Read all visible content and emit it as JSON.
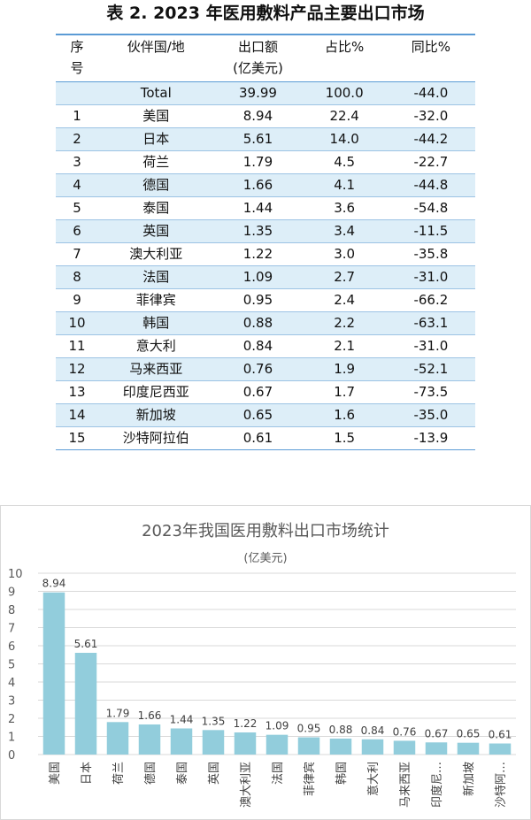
{
  "table": {
    "title": "表 2. 2023 年医用敷料产品主要出口市场",
    "headers": {
      "idx": [
        "序",
        "号"
      ],
      "partner": "伙伴国/地",
      "amount": [
        "出口额",
        "(亿美元)"
      ],
      "share": "占比%",
      "yoy": "同比%"
    },
    "rows": [
      {
        "idx": "",
        "partner": "Total",
        "amount": "39.99",
        "share": "100.0",
        "yoy": "-44.0"
      },
      {
        "idx": "1",
        "partner": "美国",
        "amount": "8.94",
        "share": "22.4",
        "yoy": "-32.0"
      },
      {
        "idx": "2",
        "partner": "日本",
        "amount": "5.61",
        "share": "14.0",
        "yoy": "-44.2"
      },
      {
        "idx": "3",
        "partner": "荷兰",
        "amount": "1.79",
        "share": "4.5",
        "yoy": "-22.7"
      },
      {
        "idx": "4",
        "partner": "德国",
        "amount": "1.66",
        "share": "4.1",
        "yoy": "-44.8"
      },
      {
        "idx": "5",
        "partner": "泰国",
        "amount": "1.44",
        "share": "3.6",
        "yoy": "-54.8"
      },
      {
        "idx": "6",
        "partner": "英国",
        "amount": "1.35",
        "share": "3.4",
        "yoy": "-11.5"
      },
      {
        "idx": "7",
        "partner": "澳大利亚",
        "amount": "1.22",
        "share": "3.0",
        "yoy": "-35.8"
      },
      {
        "idx": "8",
        "partner": "法国",
        "amount": "1.09",
        "share": "2.7",
        "yoy": "-31.0"
      },
      {
        "idx": "9",
        "partner": "菲律宾",
        "amount": "0.95",
        "share": "2.4",
        "yoy": "-66.2"
      },
      {
        "idx": "10",
        "partner": "韩国",
        "amount": "0.88",
        "share": "2.2",
        "yoy": "-63.1"
      },
      {
        "idx": "11",
        "partner": "意大利",
        "amount": "0.84",
        "share": "2.1",
        "yoy": "-31.0"
      },
      {
        "idx": "12",
        "partner": "马来西亚",
        "amount": "0.76",
        "share": "1.9",
        "yoy": "-52.1"
      },
      {
        "idx": "13",
        "partner": "印度尼西亚",
        "amount": "0.67",
        "share": "1.7",
        "yoy": "-73.5"
      },
      {
        "idx": "14",
        "partner": "新加坡",
        "amount": "0.65",
        "share": "1.6",
        "yoy": "-35.0"
      },
      {
        "idx": "15",
        "partner": "沙特阿拉伯",
        "amount": "0.61",
        "share": "1.5",
        "yoy": "-13.9"
      }
    ]
  },
  "colors": {
    "header_rule": "#5b9bd5",
    "row_shade": "#ddeef8",
    "bar": "#92cddc",
    "grid": "#d9d9d9"
  },
  "chart_data": {
    "type": "bar",
    "title": "2023年我国医用敷料出口市场统计",
    "subtitle": "(亿美元)",
    "xlabel": "",
    "ylabel": "",
    "categories": [
      "美国",
      "日本",
      "荷兰",
      "德国",
      "泰国",
      "英国",
      "澳大利亚",
      "法国",
      "菲律宾",
      "韩国",
      "意大利",
      "马来西亚",
      "印度尼…",
      "新加坡",
      "沙特阿…"
    ],
    "values": [
      8.94,
      5.61,
      1.79,
      1.66,
      1.44,
      1.35,
      1.22,
      1.09,
      0.95,
      0.88,
      0.84,
      0.76,
      0.67,
      0.65,
      0.61
    ],
    "data_labels": [
      "8.94",
      "5.61",
      "1.79",
      "1.66",
      "1.44",
      "1.35",
      "1.22",
      "1.09",
      "0.95",
      "0.88",
      "0.84",
      "0.76",
      "0.67",
      "0.65",
      "0.61"
    ],
    "yticks": [
      "0",
      "1",
      "2",
      "3",
      "4",
      "5",
      "6",
      "7",
      "8",
      "9",
      "10"
    ],
    "ylim": [
      0,
      10
    ],
    "grid": true,
    "legend": "none"
  }
}
